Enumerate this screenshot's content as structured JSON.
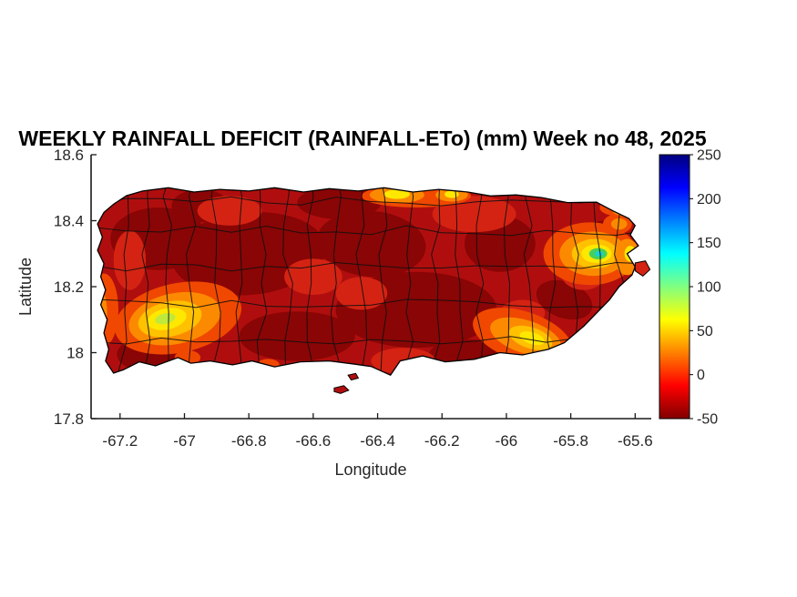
{
  "figure": {
    "title": "WEEKLY RAINFALL DEFICIT (RAINFALL-ETo) (mm) Week no 48, 2025",
    "xlabel": "Longitude",
    "ylabel": "Latitude",
    "background": "#ffffff"
  },
  "axes": {
    "xlim": [
      -67.29,
      -65.55
    ],
    "ylim": [
      17.8,
      18.6
    ],
    "xticks": [
      -67.2,
      -67,
      -66.8,
      -66.6,
      -66.4,
      -66.2,
      -66,
      -65.8,
      -65.6
    ],
    "xtick_labels": [
      "-67.2",
      "-67",
      "-66.8",
      "-66.6",
      "-66.4",
      "-66.2",
      "-66",
      "-65.8",
      "-65.6"
    ],
    "yticks": [
      17.8,
      18,
      18.2,
      18.4,
      18.6
    ],
    "ytick_labels": [
      "17.8",
      "18",
      "18.2",
      "18.4",
      "18.6"
    ],
    "axis_color": "#1a1a1a"
  },
  "colorbar": {
    "min": -50,
    "max": 250,
    "ticks": [
      -50,
      0,
      50,
      100,
      150,
      200,
      250
    ],
    "tick_labels": [
      "-50",
      "0",
      "50",
      "100",
      "150",
      "200",
      "250"
    ],
    "gradient_top_to_bottom": [
      "#000080",
      "#0000ff",
      "#0080ff",
      "#00ffff",
      "#80ff80",
      "#ffff00",
      "#ff8000",
      "#ff0000",
      "#800000"
    ]
  },
  "chart_data": {
    "type": "heatmap",
    "subtype": "filled_contour_map",
    "title": "WEEKLY RAINFALL DEFICIT (RAINFALL-ETo) (mm) Week no 48, 2025",
    "xlabel": "Longitude",
    "ylabel": "Latitude",
    "xlim": [
      -67.29,
      -65.55
    ],
    "ylim": [
      17.8,
      18.6
    ],
    "xticks": [
      -67.2,
      -67,
      -66.8,
      -66.6,
      -66.4,
      -66.2,
      -66,
      -65.8,
      -65.6
    ],
    "yticks": [
      17.8,
      18,
      18.2,
      18.4,
      18.6
    ],
    "region": "Puerto Rico with municipality boundaries overlaid",
    "units": "mm",
    "colormap": "jet (dark red = lowest / strongest deficit at -50, dark blue = highest at 250)",
    "colorbar_range": [
      -50,
      250
    ],
    "colorbar_ticks": [
      -50,
      0,
      50,
      100,
      150,
      200,
      250
    ],
    "field_summary": "Island-wide rainfall deficit: most municipalities near -50 mm (dark red); orange-to-yellow relief in the southwest interior, on the southeast coast, and in small north-coast spots; yellow-green-cyan local maximum in the eastern mountains near El Yunque",
    "sampled_values": [
      {
        "lon": -67.06,
        "lat": 18.1,
        "value": 85
      },
      {
        "lon": -66.95,
        "lat": 18.1,
        "value": 20
      },
      {
        "lon": -66.8,
        "lat": 18.3,
        "value": -48
      },
      {
        "lon": -66.5,
        "lat": 18.2,
        "value": -45
      },
      {
        "lon": -66.34,
        "lat": 18.48,
        "value": 45
      },
      {
        "lon": -66.17,
        "lat": 18.48,
        "value": 40
      },
      {
        "lon": -66.2,
        "lat": 18.1,
        "value": -48
      },
      {
        "lon": -65.92,
        "lat": 18.04,
        "value": 55
      },
      {
        "lon": -65.72,
        "lat": 18.3,
        "value": 135
      },
      {
        "lon": -65.61,
        "lat": 18.3,
        "value": 50
      },
      {
        "lon": -66.0,
        "lat": 18.3,
        "value": -40
      }
    ]
  },
  "map": {
    "base_color": "#b00e0e",
    "coast_color": "#000000",
    "boundary_color": "#101010",
    "outline": [
      [
        -67.18,
        18.476
      ],
      [
        -67.13,
        18.49
      ],
      [
        -67.05,
        18.5
      ],
      [
        -66.97,
        18.487
      ],
      [
        -66.89,
        18.495
      ],
      [
        -66.8,
        18.49
      ],
      [
        -66.72,
        18.5
      ],
      [
        -66.63,
        18.487
      ],
      [
        -66.55,
        18.497
      ],
      [
        -66.46,
        18.49
      ],
      [
        -66.38,
        18.5
      ],
      [
        -66.29,
        18.487
      ],
      [
        -66.21,
        18.495
      ],
      [
        -66.12,
        18.487
      ],
      [
        -66.05,
        18.475
      ],
      [
        -65.97,
        18.478
      ],
      [
        -65.89,
        18.47
      ],
      [
        -65.81,
        18.455
      ],
      [
        -65.72,
        18.456
      ],
      [
        -65.67,
        18.43
      ],
      [
        -65.62,
        18.407
      ],
      [
        -65.6,
        18.385
      ],
      [
        -65.615,
        18.357
      ],
      [
        -65.59,
        18.324
      ],
      [
        -65.625,
        18.3
      ],
      [
        -65.6,
        18.26
      ],
      [
        -65.61,
        18.235
      ],
      [
        -65.65,
        18.2
      ],
      [
        -65.68,
        18.16
      ],
      [
        -65.72,
        18.12
      ],
      [
        -65.76,
        18.08
      ],
      [
        -65.82,
        18.03
      ],
      [
        -65.87,
        18.01
      ],
      [
        -65.95,
        17.993
      ],
      [
        -66.02,
        18.0
      ],
      [
        -66.1,
        17.98
      ],
      [
        -66.19,
        17.972
      ],
      [
        -66.26,
        17.99
      ],
      [
        -66.33,
        17.975
      ],
      [
        -66.36,
        17.932
      ],
      [
        -66.42,
        17.958
      ],
      [
        -66.47,
        17.965
      ],
      [
        -66.55,
        17.975
      ],
      [
        -66.64,
        17.972
      ],
      [
        -66.72,
        17.957
      ],
      [
        -66.79,
        17.975
      ],
      [
        -66.85,
        17.963
      ],
      [
        -66.92,
        17.975
      ],
      [
        -66.98,
        17.968
      ],
      [
        -67.02,
        17.985
      ],
      [
        -67.09,
        17.96
      ],
      [
        -67.14,
        17.972
      ],
      [
        -67.19,
        17.948
      ],
      [
        -67.22,
        17.938
      ],
      [
        -67.245,
        17.975
      ],
      [
        -67.235,
        18.01
      ],
      [
        -67.25,
        18.06
      ],
      [
        -67.24,
        18.1
      ],
      [
        -67.26,
        18.145
      ],
      [
        -67.245,
        18.19
      ],
      [
        -67.26,
        18.23
      ],
      [
        -67.25,
        18.27
      ],
      [
        -67.27,
        18.31
      ],
      [
        -67.255,
        18.35
      ],
      [
        -67.27,
        18.39
      ],
      [
        -67.25,
        18.425
      ],
      [
        -67.22,
        18.45
      ]
    ],
    "islets": [
      {
        "color": "#b00e0e",
        "points": [
          [
            -66.535,
            17.893
          ],
          [
            -66.505,
            17.9
          ],
          [
            -66.49,
            17.886
          ],
          [
            -66.515,
            17.876
          ],
          [
            -66.535,
            17.882
          ]
        ]
      },
      {
        "color": "#b00e0e",
        "points": [
          [
            -66.492,
            17.932
          ],
          [
            -66.468,
            17.937
          ],
          [
            -66.46,
            17.923
          ],
          [
            -66.482,
            17.917
          ]
        ]
      },
      {
        "color": "#d42313",
        "points": [
          [
            -65.6,
            18.272
          ],
          [
            -65.568,
            18.278
          ],
          [
            -65.554,
            18.252
          ],
          [
            -65.576,
            18.232
          ],
          [
            -65.6,
            18.248
          ]
        ]
      }
    ],
    "regions": [
      [
        -67.08,
        18.345,
        0.15,
        0.095,
        0,
        "#8a0505"
      ],
      [
        -66.8,
        18.3,
        0.24,
        0.125,
        -5,
        "#8a0505"
      ],
      [
        -66.42,
        18.33,
        0.17,
        0.1,
        5,
        "#8a0505"
      ],
      [
        -66.28,
        18.13,
        0.25,
        0.115,
        0,
        "#8a0505"
      ],
      [
        -66.65,
        18.05,
        0.18,
        0.075,
        0,
        "#8a0505"
      ],
      [
        -67.12,
        17.995,
        0.09,
        0.05,
        0,
        "#8a0505"
      ],
      [
        -66.02,
        18.33,
        0.11,
        0.085,
        0,
        "#8a0505"
      ],
      [
        -65.82,
        18.16,
        0.09,
        0.055,
        20,
        "#8a0505"
      ],
      [
        -66.52,
        18.455,
        0.13,
        0.05,
        0,
        "#8a0505"
      ],
      [
        -66.95,
        18.445,
        0.09,
        0.05,
        0,
        "#8a0505"
      ],
      [
        -66.12,
        17.995,
        0.12,
        0.045,
        0,
        "#8a0505"
      ],
      [
        -65.7,
        18.36,
        0.05,
        0.04,
        0,
        "#8a0505"
      ],
      [
        -66.6,
        18.23,
        0.09,
        0.055,
        0,
        "#d42313"
      ],
      [
        -66.1,
        18.42,
        0.13,
        0.055,
        0,
        "#d42313"
      ],
      [
        -66.86,
        18.43,
        0.1,
        0.045,
        0,
        "#d42313"
      ],
      [
        -66.32,
        17.975,
        0.1,
        0.04,
        0,
        "#d42313"
      ],
      [
        -65.76,
        18.24,
        0.07,
        0.05,
        0,
        "#d42313"
      ],
      [
        -67.17,
        18.28,
        0.05,
        0.09,
        0,
        "#d42313"
      ],
      [
        -66.45,
        18.18,
        0.08,
        0.05,
        0,
        "#d42313"
      ],
      [
        -65.95,
        18.12,
        0.07,
        0.04,
        0,
        "#d42313"
      ],
      [
        -67.02,
        18.105,
        0.2,
        0.105,
        -12,
        "#f04800"
      ],
      [
        -67.03,
        18.103,
        0.145,
        0.077,
        -12,
        "#fc8a00"
      ],
      [
        -67.045,
        18.102,
        0.1,
        0.053,
        -12,
        "#ffc100"
      ],
      [
        -67.055,
        18.102,
        0.062,
        0.032,
        -12,
        "#ffe800"
      ],
      [
        -67.06,
        18.103,
        0.032,
        0.016,
        -12,
        "#bfe93c"
      ],
      [
        -65.95,
        18.05,
        0.16,
        0.075,
        18,
        "#f04800"
      ],
      [
        -65.94,
        18.048,
        0.115,
        0.05,
        18,
        "#fc8a00"
      ],
      [
        -65.925,
        18.045,
        0.07,
        0.032,
        18,
        "#ffc100"
      ],
      [
        -65.92,
        18.044,
        0.04,
        0.018,
        18,
        "#ffe800"
      ],
      [
        -65.74,
        18.3,
        0.145,
        0.095,
        0,
        "#f04800"
      ],
      [
        -65.73,
        18.3,
        0.105,
        0.067,
        0,
        "#fc8a00"
      ],
      [
        -65.725,
        18.3,
        0.072,
        0.045,
        0,
        "#ffc100"
      ],
      [
        -65.72,
        18.3,
        0.047,
        0.028,
        0,
        "#ffe800"
      ],
      [
        -65.715,
        18.3,
        0.028,
        0.017,
        0,
        "#44d05c"
      ],
      [
        -65.712,
        18.3,
        0.013,
        0.008,
        0,
        "#17cfd4"
      ],
      [
        -65.625,
        18.29,
        0.04,
        0.055,
        0,
        "#fc8a00"
      ],
      [
        -65.615,
        18.3,
        0.018,
        0.024,
        0,
        "#ffe800"
      ],
      [
        -65.655,
        18.39,
        0.045,
        0.03,
        0,
        "#f04800"
      ],
      [
        -65.65,
        18.39,
        0.025,
        0.017,
        0,
        "#fc8a00"
      ],
      [
        -66.28,
        18.475,
        0.17,
        0.035,
        0,
        "#f04800"
      ],
      [
        -66.34,
        18.478,
        0.085,
        0.025,
        0,
        "#fc8a00"
      ],
      [
        -66.34,
        18.48,
        0.04,
        0.014,
        0,
        "#ffe800"
      ],
      [
        -66.17,
        18.478,
        0.05,
        0.02,
        0,
        "#fc8a00"
      ],
      [
        -66.17,
        18.48,
        0.022,
        0.011,
        0,
        "#ffe800"
      ],
      [
        -67.25,
        18.13,
        0.045,
        0.11,
        0,
        "#f04800"
      ],
      [
        -67.265,
        18.12,
        0.025,
        0.075,
        0,
        "#fc8a00"
      ],
      [
        -66.99,
        17.985,
        0.04,
        0.022,
        0,
        "#f04800"
      ],
      [
        -66.74,
        17.963,
        0.035,
        0.018,
        0,
        "#f04800"
      ],
      [
        -65.66,
        18.44,
        0.05,
        0.025,
        0,
        "#f04800"
      ],
      [
        -65.64,
        18.43,
        0.03,
        0.015,
        0,
        "#fc8a00"
      ]
    ],
    "boundaries": {
      "vertical_lons": [
        -67.19,
        -67.12,
        -67.05,
        -66.98,
        -66.9,
        -66.83,
        -66.76,
        -66.68,
        -66.61,
        -66.53,
        -66.45,
        -66.38,
        -66.3,
        -66.22,
        -66.15,
        -66.08,
        -66.0,
        -65.93,
        -65.86,
        -65.79,
        -65.72,
        -65.65
      ],
      "horizontal_lats": [
        18.04,
        18.15,
        18.26,
        18.37,
        18.46
      ]
    }
  }
}
